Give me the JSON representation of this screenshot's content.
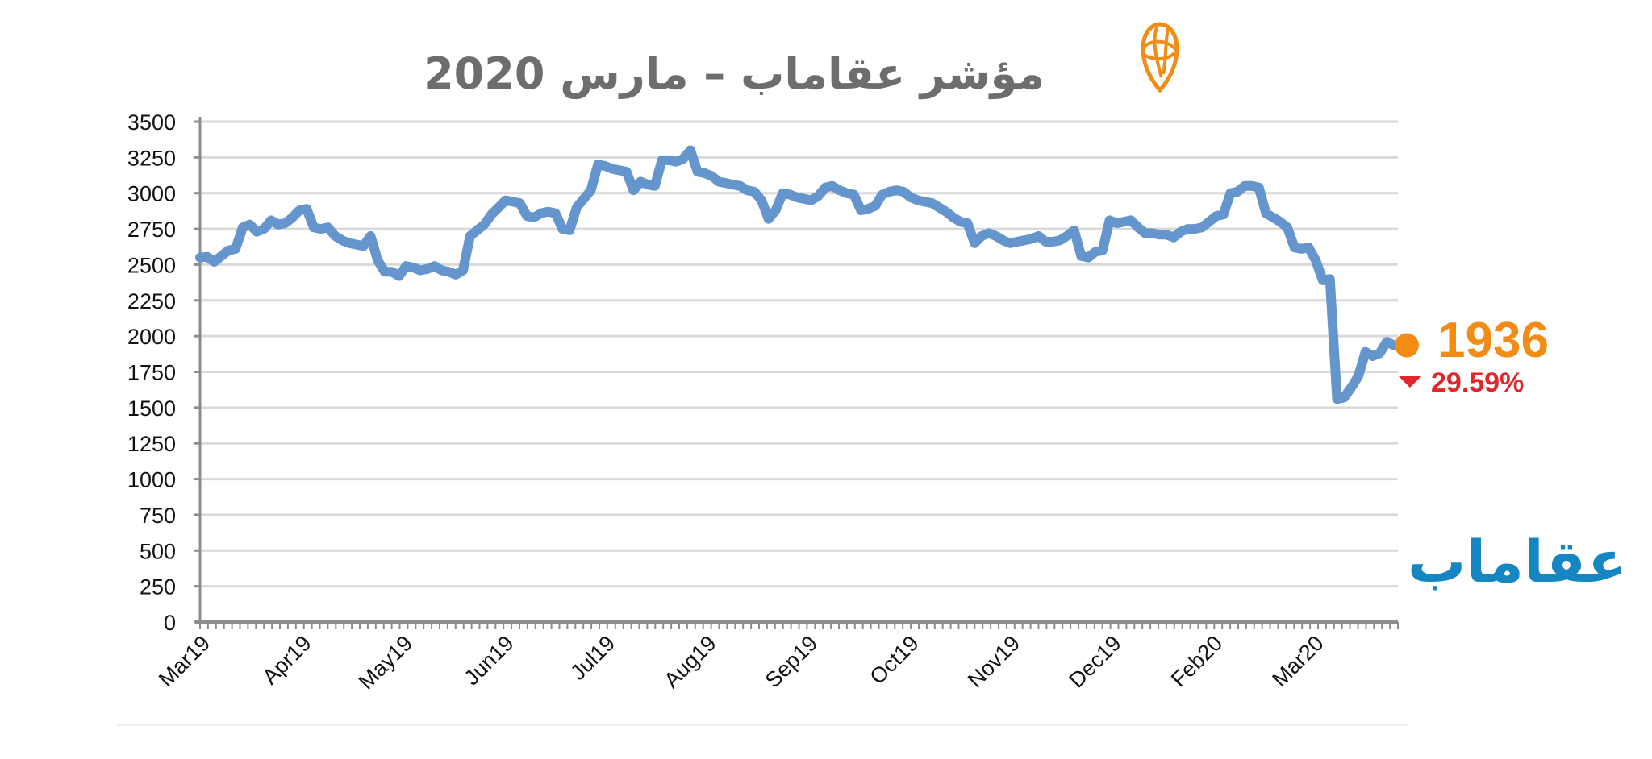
{
  "colors": {
    "line": "#6495cd",
    "title": "#6d6d6d",
    "accent_orange": "#f28c14",
    "decline_red": "#e3262a",
    "brand_blue": "#1686c3",
    "grid": "#d9d9d9",
    "axis": "#8c8c8c"
  },
  "header": {
    "title": "مؤشر عقاماب – مارس 2020",
    "logo_icon": "map-pin-icon"
  },
  "brand": {
    "wordmark": "عقاماب"
  },
  "annotation": {
    "current_value": "1936",
    "change": "29.59%",
    "direction_icon": "triangle-down-icon"
  },
  "chart_data": {
    "type": "line",
    "title": "مؤشر عقاماب – مارس 2020",
    "xlabel": "",
    "ylabel": "",
    "ylim": [
      0,
      3500
    ],
    "yticks": [
      0,
      250,
      500,
      750,
      1000,
      1250,
      1500,
      1750,
      2000,
      2250,
      2500,
      2750,
      3000,
      3250,
      3500
    ],
    "x_tick_labels": [
      "Mar19",
      "Apr19",
      "May19",
      "Jun19",
      "Jul19",
      "Aug19",
      "Sep19",
      "Oct19",
      "Nov19",
      "Dec19",
      "Feb20",
      "Mar20"
    ],
    "grid": true,
    "legend": "none",
    "series": [
      {
        "values": [
          2550,
          2555,
          2520,
          2560,
          2600,
          2610,
          2760,
          2780,
          2730,
          2750,
          2810,
          2780,
          2790,
          2830,
          2880,
          2890,
          2760,
          2750,
          2760,
          2700,
          2670,
          2650,
          2640,
          2630,
          2700,
          2530,
          2450,
          2450,
          2420,
          2490,
          2480,
          2460,
          2470,
          2490,
          2460,
          2450,
          2430,
          2460,
          2700,
          2740,
          2780,
          2850,
          2900,
          2950,
          2940,
          2930,
          2840,
          2830,
          2860,
          2870,
          2860,
          2750,
          2740,
          2900,
          2960,
          3020,
          3200,
          3190,
          3170,
          3160,
          3150,
          3020,
          3080,
          3060,
          3050,
          3230,
          3230,
          3220,
          3240,
          3300,
          3150,
          3140,
          3120,
          3080,
          3070,
          3060,
          3050,
          3020,
          3010,
          2950,
          2820,
          2880,
          3000,
          2990,
          2970,
          2960,
          2950,
          2980,
          3040,
          3050,
          3020,
          3000,
          2990,
          2880,
          2890,
          2910,
          2990,
          3010,
          3020,
          3010,
          2970,
          2950,
          2940,
          2930,
          2900,
          2870,
          2830,
          2800,
          2790,
          2650,
          2700,
          2720,
          2700,
          2670,
          2650,
          2660,
          2670,
          2680,
          2700,
          2660,
          2660,
          2670,
          2700,
          2740,
          2560,
          2550,
          2590,
          2600,
          2810,
          2790,
          2800,
          2810,
          2760,
          2720,
          2720,
          2710,
          2710,
          2690,
          2730,
          2750,
          2750,
          2760,
          2800,
          2840,
          2850,
          3000,
          3010,
          3050,
          3050,
          3040,
          2860,
          2830,
          2800,
          2760,
          2620,
          2610,
          2620,
          2530,
          2390,
          2400,
          1560,
          1570,
          1640,
          1720,
          1890,
          1860,
          1880,
          1960,
          1936
        ]
      }
    ]
  }
}
